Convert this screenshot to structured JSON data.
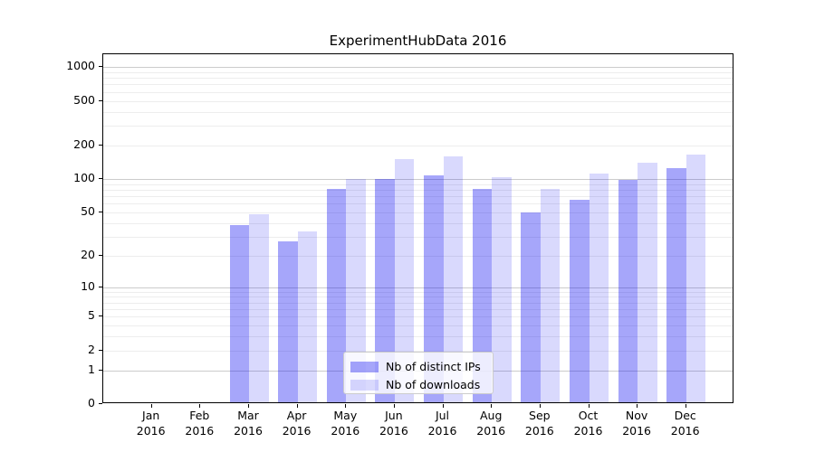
{
  "title": "ExperimentHubData 2016",
  "chart_data": {
    "type": "bar",
    "title": "ExperimentHubData 2016",
    "xlabel": "",
    "ylabel": "",
    "scale": "log10(value+1)",
    "grid": true,
    "legend_position": "lower-center",
    "year": "2016",
    "categories": [
      "Jan",
      "Feb",
      "Mar",
      "Apr",
      "May",
      "Jun",
      "Jul",
      "Aug",
      "Sep",
      "Oct",
      "Nov",
      "Dec"
    ],
    "series": [
      {
        "name": "Nb of distinct IPs",
        "color": "rgba(0,0,240,0.35)",
        "color_hex_on_white": "#a6a6fa",
        "values": [
          0,
          0,
          37,
          26,
          78,
          96,
          104,
          79,
          48,
          63,
          94,
          120
        ]
      },
      {
        "name": "Nb of downloads",
        "color": "rgba(0,0,240,0.15)",
        "color_hex_on_white": "#d9d9fd",
        "values": [
          0,
          0,
          46,
          32,
          97,
          145,
          153,
          100,
          78,
          107,
          135,
          160
        ]
      }
    ],
    "y_ticks": [
      0,
      1,
      2,
      5,
      10,
      20,
      50,
      100,
      200,
      500,
      1000
    ],
    "ylim": [
      0,
      1300
    ]
  }
}
